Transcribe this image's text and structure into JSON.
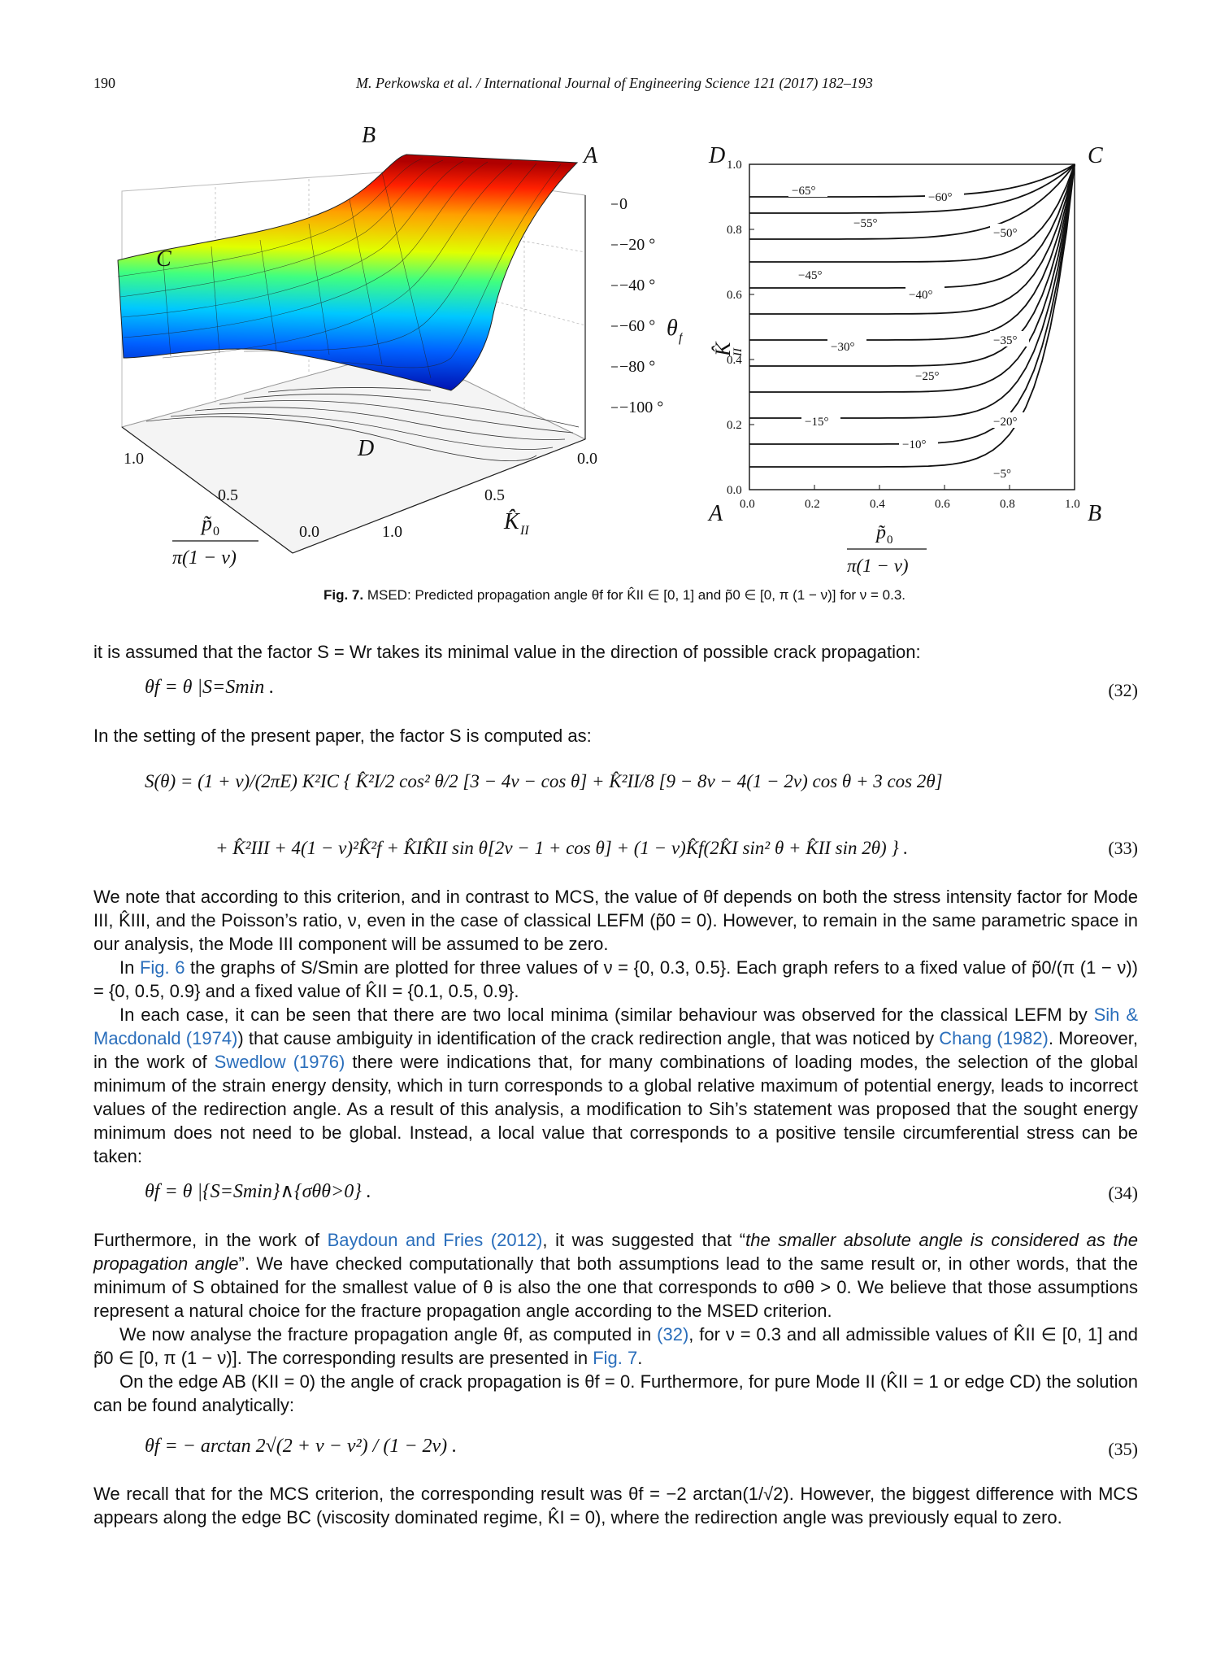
{
  "header": {
    "page_number": "190",
    "journal_ref": "M. Perkowska et al. / International Journal of Engineering Science 121 (2017) 182–193"
  },
  "figure_left": {
    "corner_B": "B",
    "corner_A": "A",
    "corner_C": "C",
    "corner_D": "D",
    "z_ticks": [
      "0",
      "−20 °",
      "−40 °",
      "−60 °",
      "−80 °",
      "−100 °"
    ],
    "z_label": "θ",
    "z_label_sub": "f",
    "x_ticks": [
      "1.0",
      "0.5",
      "0.0"
    ],
    "y_ticks": [
      "0.0",
      "0.5",
      "1.0"
    ],
    "x_label_num": "p̃",
    "x_label_num_sub": "0",
    "x_label_den": "π(1 − ν)",
    "y_label": "K̂",
    "y_label_sub": "II",
    "colors": [
      "#0000a0",
      "#0060ff",
      "#00c8ff",
      "#40ff80",
      "#e0ff00",
      "#ffa000",
      "#ff2000",
      "#b00000"
    ]
  },
  "chart_data": {
    "type": "contour",
    "title": "",
    "corners": {
      "top_left": "D",
      "top_right": "C",
      "bottom_left": "A",
      "bottom_right": "B"
    },
    "x_ticks": [
      "0.0",
      "0.2",
      "0.4",
      "0.6",
      "0.8",
      "1.0"
    ],
    "y_ticks": [
      "0.0",
      "0.2",
      "0.4",
      "0.6",
      "0.8",
      "1.0"
    ],
    "xlim": [
      0,
      1
    ],
    "ylim": [
      0,
      1
    ],
    "xlabel_num": "p̃",
    "xlabel_num_sub": "0",
    "xlabel_den": "π(1 − ν)",
    "ylabel": "K̂",
    "ylabel_sub": "II",
    "contour_labels": [
      "−65°",
      "−60°",
      "−55°",
      "−50°",
      "−45°",
      "−40°",
      "−35°",
      "−30°",
      "−25°",
      "−20°",
      "−15°",
      "−10°",
      "−5°"
    ]
  },
  "caption": {
    "label": "Fig. 7.",
    "text": "MSED: Predicted propagation angle θf for K̂II ∈ [0, 1] and p̃0 ∈ [0, π (1 − ν)] for ν = 0.3."
  },
  "paragraphs": {
    "p1": "it is assumed that the factor S = Wr takes its minimal value in the direction of possible crack propagation:",
    "p2": "In the setting of the present paper, the factor S is computed as:",
    "p3": "We note that according to this criterion, and in contrast to MCS, the value of θf depends on both the stress intensity factor for Mode III, K̂III, and the Poisson’s ratio, ν, even in the case of classical LEFM (p̃0 = 0). However, to remain in the same parametric space in our analysis, the Mode III component will be assumed to be zero.",
    "p4_pre": "In ",
    "p4_link": "Fig. 6",
    "p4_post": " the graphs of S/Smin are plotted for three values of ν = {0, 0.3, 0.5}. Each graph refers to a fixed value of p̃0/(π (1 − ν)) = {0, 0.5, 0.9} and a fixed value of K̂II = {0.1, 0.5, 0.9}.",
    "p5_a": "In each case, it can be seen that there are two local minima (similar behaviour was observed for the classical LEFM by ",
    "p5_link1": "Sih & Macdonald (1974)",
    "p5_b": ") that cause ambiguity in identification of the crack redirection angle, that was noticed by ",
    "p5_link2": "Chang (1982)",
    "p5_c": ". Moreover, in the work of ",
    "p5_link3": "Swedlow (1976)",
    "p5_d": " there were indications that, for many combinations of loading modes, the selection of the global minimum of the strain energy density, which in turn corresponds to a global relative maximum of potential energy, leads to incorrect values of the redirection angle. As a result of this analysis, a modification to Sih’s statement was proposed that the sought energy minimum does not need to be global. Instead, a local value that corresponds to a positive tensile circumferential stress can be taken:",
    "p6_a": "Furthermore, in the work of ",
    "p6_link": "Baydoun and Fries (2012)",
    "p6_b": ", it was suggested that “",
    "p6_quote": "the smaller absolute angle is considered as the propagation angle",
    "p6_c": "”. We have checked computationally that both assumptions lead to the same result or, in other words, that the minimum of S obtained for the smallest value of θ is also the one that corresponds to σθθ > 0. We believe that those assumptions represent a natural choice for the fracture propagation angle according to the MSED criterion.",
    "p7_a": "We now analyse the fracture propagation angle θf, as computed in ",
    "p7_link1": "(32)",
    "p7_b": ", for ν = 0.3 and all admissible values of K̂II ∈ [0, 1] and p̃0 ∈ [0, π (1 − ν)]. The corresponding results are presented in ",
    "p7_link2": "Fig. 7",
    "p7_c": ".",
    "p8": "On the edge AB (KII = 0) the angle of crack propagation is θf = 0. Furthermore, for pure Mode II (K̂II = 1 or edge CD) the solution can be found analytically:",
    "p9": "We recall that for the MCS criterion, the corresponding result was θf = −2 arctan(1/√2). However, the biggest difference with MCS appears along the edge BC (viscosity dominated regime, K̂I = 0), where the redirection angle was previously equal to zero."
  },
  "equations": {
    "eq32": "θf = θ |S=Smin .",
    "eq32_num": "(32)",
    "eq33_line1": "S(θ) = (1 + ν)/(2πE) K²IC { K̂²I/2 cos² θ/2 [3 − 4ν − cos θ] + K̂²II/8 [9 − 8ν − 4(1 − 2ν) cos θ + 3 cos 2θ]",
    "eq33_line2": "+ K̂²III + 4(1 − ν)²K̂²f + K̂IK̂II sin θ[2ν − 1 + cos θ] + (1 − ν)K̂f(2K̂I sin² θ + K̂II sin 2θ) } .",
    "eq33_num": "(33)",
    "eq34": "θf = θ |{S=Smin}∧{σθθ>0} .",
    "eq34_num": "(34)",
    "eq35": "θf = − arctan 2√(2 + ν − ν²) / (1 − 2ν) .",
    "eq35_num": "(35)"
  }
}
